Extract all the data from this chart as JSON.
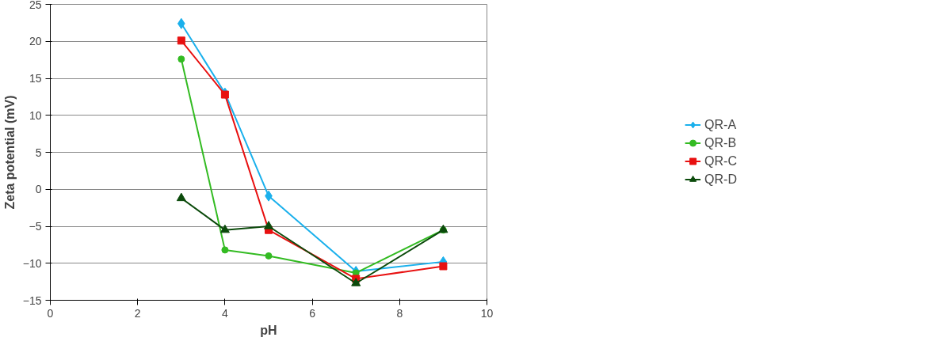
{
  "chart_data": {
    "type": "line",
    "xlabel": "pH",
    "ylabel": "Zeta potential (mV)",
    "x": [
      3,
      4,
      5,
      7,
      9
    ],
    "series": [
      {
        "name": "QR-A",
        "color": "#1ab0ec",
        "marker": "diamond",
        "values": [
          22.4,
          13.0,
          -0.9,
          -11.1,
          -9.8
        ]
      },
      {
        "name": "QR-B",
        "color": "#33bb22",
        "marker": "circle",
        "values": [
          17.6,
          -8.2,
          -9.0,
          -11.3,
          -5.5
        ]
      },
      {
        "name": "QR-C",
        "color": "#e81010",
        "marker": "square",
        "values": [
          20.1,
          12.8,
          -5.5,
          -12.1,
          -10.4
        ]
      },
      {
        "name": "QR-D",
        "color": "#0b4a0b",
        "marker": "triangle",
        "values": [
          -1.2,
          -5.5,
          -5.0,
          -12.7,
          -5.5
        ]
      }
    ],
    "xlim": [
      0,
      10
    ],
    "xticks": [
      0,
      2,
      4,
      6,
      8,
      10
    ],
    "ylim": [
      -15,
      25
    ],
    "yticks": [
      -15,
      -10,
      -5,
      0,
      5,
      10,
      15,
      20,
      25
    ],
    "grid": "y",
    "legend": "right",
    "line_style": "solid"
  }
}
